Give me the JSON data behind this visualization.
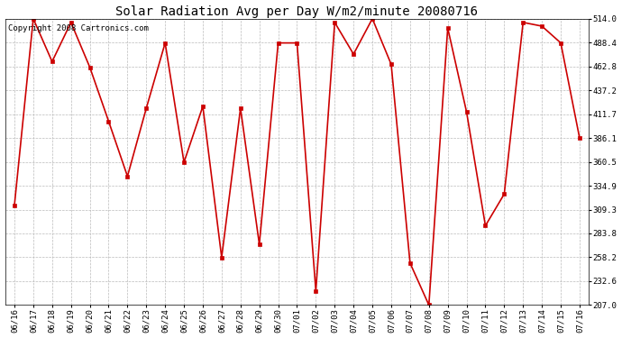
{
  "title": "Solar Radiation Avg per Day W/m2/minute 20080716",
  "copyright": "Copyright 2008 Cartronics.com",
  "labels": [
    "06/16",
    "06/17",
    "06/18",
    "06/19",
    "06/20",
    "06/21",
    "06/22",
    "06/23",
    "06/24",
    "06/25",
    "06/26",
    "06/27",
    "06/28",
    "06/29",
    "06/30",
    "07/01",
    "07/02",
    "07/03",
    "07/04",
    "07/05",
    "07/06",
    "07/07",
    "07/08",
    "07/09",
    "07/10",
    "07/11",
    "07/12",
    "07/13",
    "07/14",
    "07/15",
    "07/16"
  ],
  "values": [
    314,
    514,
    468,
    510,
    462,
    404,
    345,
    418,
    488,
    360,
    420,
    258,
    418,
    272,
    488,
    488,
    222,
    510,
    476,
    514,
    465,
    252,
    207,
    504,
    414,
    292,
    326,
    510,
    506,
    488,
    386
  ],
  "line_color": "#cc0000",
  "marker_color": "#cc0000",
  "bg_color": "#ffffff",
  "plot_bg_color": "#ffffff",
  "grid_color": "#bbbbbb",
  "ylim_min": 207.0,
  "ylim_max": 514.0,
  "yticks": [
    207.0,
    232.6,
    258.2,
    283.8,
    309.3,
    334.9,
    360.5,
    386.1,
    411.7,
    437.2,
    462.8,
    488.4,
    514.0
  ],
  "title_fontsize": 10,
  "copyright_fontsize": 6.5,
  "tick_fontsize": 6.5,
  "figure_width": 6.9,
  "figure_height": 3.75,
  "dpi": 100
}
